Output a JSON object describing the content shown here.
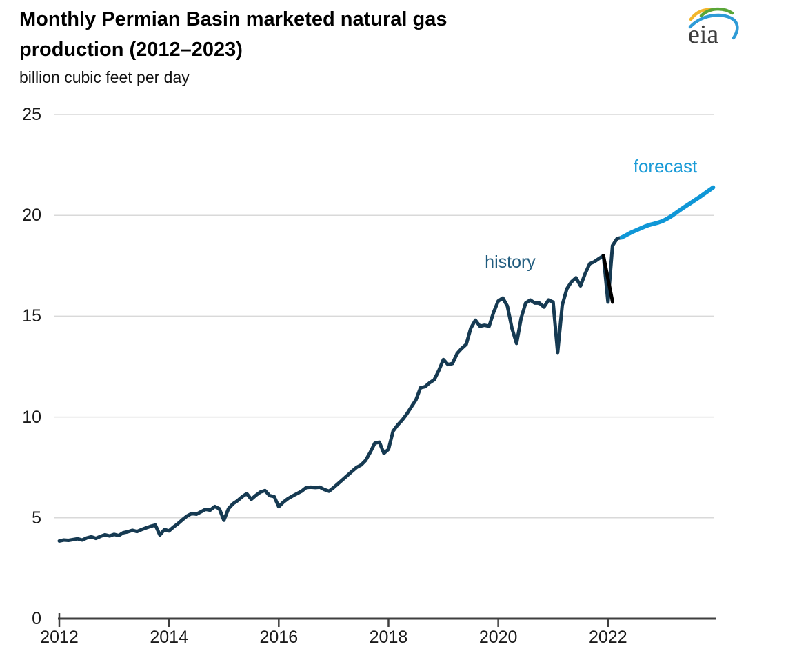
{
  "header": {
    "title": "Monthly Permian Basin marketed natural gas production (2012–2023)",
    "subtitle": "billion cubic feet per day",
    "logo_text": "eia"
  },
  "annotations": {
    "history": {
      "text": "history",
      "color": "#1f5b7e"
    },
    "forecast": {
      "text": "forecast",
      "color": "#1a9bd7"
    }
  },
  "chart_data": {
    "type": "line",
    "title": "Monthly Permian Basin marketed natural gas production (2012–2023)",
    "xlabel": "",
    "ylabel": "billion cubic feet per day",
    "xlim": [
      2012,
      2023.97
    ],
    "ylim": [
      0,
      25
    ],
    "x_ticks": [
      2012,
      2014,
      2016,
      2018,
      2020,
      2022
    ],
    "y_ticks": [
      0,
      5,
      10,
      15,
      20,
      25
    ],
    "grid": "horizontal",
    "legend_position": "inline-annotations",
    "colors": {
      "history_line": "#163a52",
      "freeze_dip_overlay": "#000000",
      "forecast_line": "#0f97d7",
      "gridline": "#d9d9d9",
      "axis": "#3f3f3f"
    },
    "series": [
      {
        "name": "history",
        "color": "#163a52",
        "width": 5,
        "start": 2012.0,
        "step": 0.083333,
        "values": [
          3.85,
          3.9,
          3.88,
          3.92,
          3.96,
          3.9,
          4.0,
          4.06,
          3.98,
          4.08,
          4.16,
          4.1,
          4.18,
          4.12,
          4.26,
          4.31,
          4.38,
          4.32,
          4.42,
          4.5,
          4.58,
          4.64,
          4.15,
          4.42,
          4.35,
          4.55,
          4.72,
          4.92,
          5.1,
          5.22,
          5.18,
          5.3,
          5.42,
          5.38,
          5.56,
          5.45,
          4.88,
          5.45,
          5.7,
          5.85,
          6.05,
          6.2,
          5.92,
          6.12,
          6.28,
          6.35,
          6.1,
          6.05,
          5.55,
          5.78,
          5.95,
          6.08,
          6.2,
          6.32,
          6.5,
          6.52,
          6.5,
          6.52,
          6.4,
          6.32,
          6.5,
          6.7,
          6.9,
          7.1,
          7.3,
          7.5,
          7.62,
          7.85,
          8.25,
          8.7,
          8.75,
          8.2,
          8.4,
          9.3,
          9.6,
          9.85,
          10.15,
          10.5,
          10.85,
          11.45,
          11.5,
          11.7,
          11.85,
          12.3,
          12.85,
          12.6,
          12.65,
          13.15,
          13.4,
          13.6,
          14.4,
          14.8,
          14.5,
          14.55,
          14.5,
          15.2,
          15.75,
          15.9,
          15.5,
          14.4,
          13.65,
          14.9,
          15.65,
          15.8,
          15.65,
          15.65,
          15.45,
          15.8,
          15.7,
          13.2,
          15.55,
          16.35,
          16.7,
          16.9,
          16.5,
          17.1,
          17.6,
          17.7,
          17.85,
          18.0,
          15.7,
          18.5,
          18.85,
          18.9
        ]
      },
      {
        "name": "freeze-dip-black",
        "color": "#000000",
        "width": 5,
        "start": 2021.917,
        "step": 0.166667,
        "values": [
          18.0,
          15.7
        ]
      },
      {
        "name": "forecast",
        "color": "#0f97d7",
        "width": 6,
        "start": 2022.25,
        "step": 0.083333,
        "values": [
          18.9,
          19.02,
          19.14,
          19.24,
          19.34,
          19.44,
          19.52,
          19.58,
          19.64,
          19.72,
          19.84,
          19.98,
          20.14,
          20.3,
          20.45,
          20.6,
          20.75,
          20.9,
          21.06,
          21.22,
          21.38
        ]
      }
    ]
  }
}
